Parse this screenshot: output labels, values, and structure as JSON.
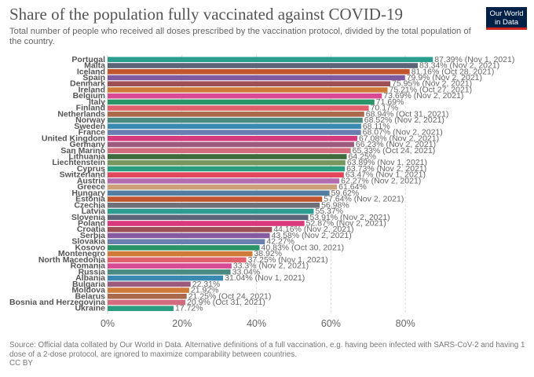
{
  "header": {
    "title": "Share of the population fully vaccinated against COVID-19",
    "subtitle": "Total number of people who received all doses prescribed by the vaccination protocol, divided by the total population of the country.",
    "logo_line1": "Our World",
    "logo_line2": "in Data"
  },
  "footer": {
    "source": "Source: Official data collated by Our World in Data. Alternative definitions of a full vaccination, e.g. having been infected with SARS-CoV-2 and having 1 dose of a 2-dose protocol, are ignored to maximize comparability between countries.",
    "license": "CC BY"
  },
  "chart_data": {
    "type": "bar",
    "orientation": "horizontal",
    "title": "Share of the population fully vaccinated against COVID-19",
    "xlabel": "",
    "ylabel": "",
    "xlim": [
      0,
      90
    ],
    "x_ticks": [
      "0%",
      "20%",
      "40%",
      "60%",
      "80%"
    ],
    "x_tick_values": [
      0,
      20,
      40,
      60,
      80
    ],
    "grid": "vertical dashed",
    "categories": [
      "Portugal",
      "Malta",
      "Iceland",
      "Spain",
      "Denmark",
      "Ireland",
      "Belgium",
      "Italy",
      "Finland",
      "Netherlands",
      "Norway",
      "Sweden",
      "France",
      "United Kingdom",
      "Germany",
      "San Marino",
      "Lithuania",
      "Liechtenstein",
      "Cyprus",
      "Switzerland",
      "Austria",
      "Greece",
      "Hungary",
      "Estonia",
      "Czechia",
      "Latvia",
      "Slovenia",
      "Poland",
      "Croatia",
      "Serbia",
      "Slovakia",
      "Kosovo",
      "Montenegro",
      "North Macedonia",
      "Romania",
      "Russia",
      "Albania",
      "Bulgaria",
      "Moldova",
      "Belarus",
      "Bosnia and Herzegovina",
      "Ukraine"
    ],
    "values": [
      87.39,
      83.34,
      81.16,
      79.9,
      75.95,
      75.21,
      73.69,
      71.69,
      70.17,
      68.94,
      68.52,
      68.11,
      68.07,
      67.08,
      66.23,
      65.33,
      64.25,
      63.89,
      63.73,
      63.47,
      62.27,
      61.64,
      59.62,
      57.64,
      56.98,
      55.37,
      53.91,
      52.87,
      44.16,
      43.58,
      42.27,
      40.83,
      38.92,
      37.25,
      33.3,
      33.04,
      31.04,
      22.31,
      21.92,
      21.25,
      20.9,
      17.72
    ],
    "data_labels": [
      "87.39% (Nov 1, 2021)",
      "83.34% (Nov 2, 2021)",
      "81.16% (Oct 28, 2021)",
      "79.9% (Nov 2, 2021)",
      "75.95% (Nov 2, 2021)",
      "75.21% (Oct 27, 2021)",
      "73.69% (Nov 2, 2021)",
      "71.69%",
      "70.17%",
      "68.94% (Oct 31, 2021)",
      "68.52% (Nov 2, 2021)",
      "68.11%",
      "68.07% (Nov 2, 2021)",
      "67.08% (Nov 2, 2021)",
      "66.23% (Nov 2, 2021)",
      "65.33% (Oct 24, 2021)",
      "64.25%",
      "63.89% (Nov 1, 2021)",
      "63.73% (Nov 2, 2021)",
      "63.47% (Nov 1, 2021)",
      "62.27% (Nov 2, 2021)",
      "61.64%",
      "59.62%",
      "57.64% (Nov 2, 2021)",
      "56.98%",
      "55.37%",
      "53.91% (Nov 2, 2021)",
      "52.87% (Nov 2, 2021)",
      "44.16% (Nov 2, 2021)",
      "43.58% (Nov 2, 2021)",
      "42.27%",
      "40.83% (Oct 30, 2021)",
      "38.92%",
      "37.25% (Nov 1, 2021)",
      "33.3% (Nov 2, 2021)",
      "33.04%",
      "31.04% (Nov 1, 2021)",
      "22.31%",
      "21.92%",
      "21.25% (Oct 24, 2021)",
      "20.9% (Oct 31, 2021)",
      "17.72%"
    ],
    "colors": [
      "#2a9d8f",
      "#5b6577",
      "#c0552e",
      "#7e5aa0",
      "#9e4f55",
      "#d07a3a",
      "#d94a94",
      "#2a9468",
      "#e0606e",
      "#a9694a",
      "#4a8a80",
      "#3a89b0",
      "#6a7fb0",
      "#d63c7c",
      "#9c5a7d",
      "#d26b7d",
      "#3d6b3d",
      "#76965f",
      "#2a9d80",
      "#e0475a",
      "#b26cb0",
      "#c9a078",
      "#517da0",
      "#c0552e",
      "#70707a",
      "#2a9d90",
      "#5b6577",
      "#d9387c",
      "#9e4f55",
      "#865a9f",
      "#6a7fb0",
      "#2a9468",
      "#d07a3a",
      "#e0606e",
      "#d94a94",
      "#4a8a80",
      "#3a89b0",
      "#9c5a7d",
      "#d07a3a",
      "#a9694a",
      "#d26b7d",
      "#2a9d80"
    ]
  }
}
